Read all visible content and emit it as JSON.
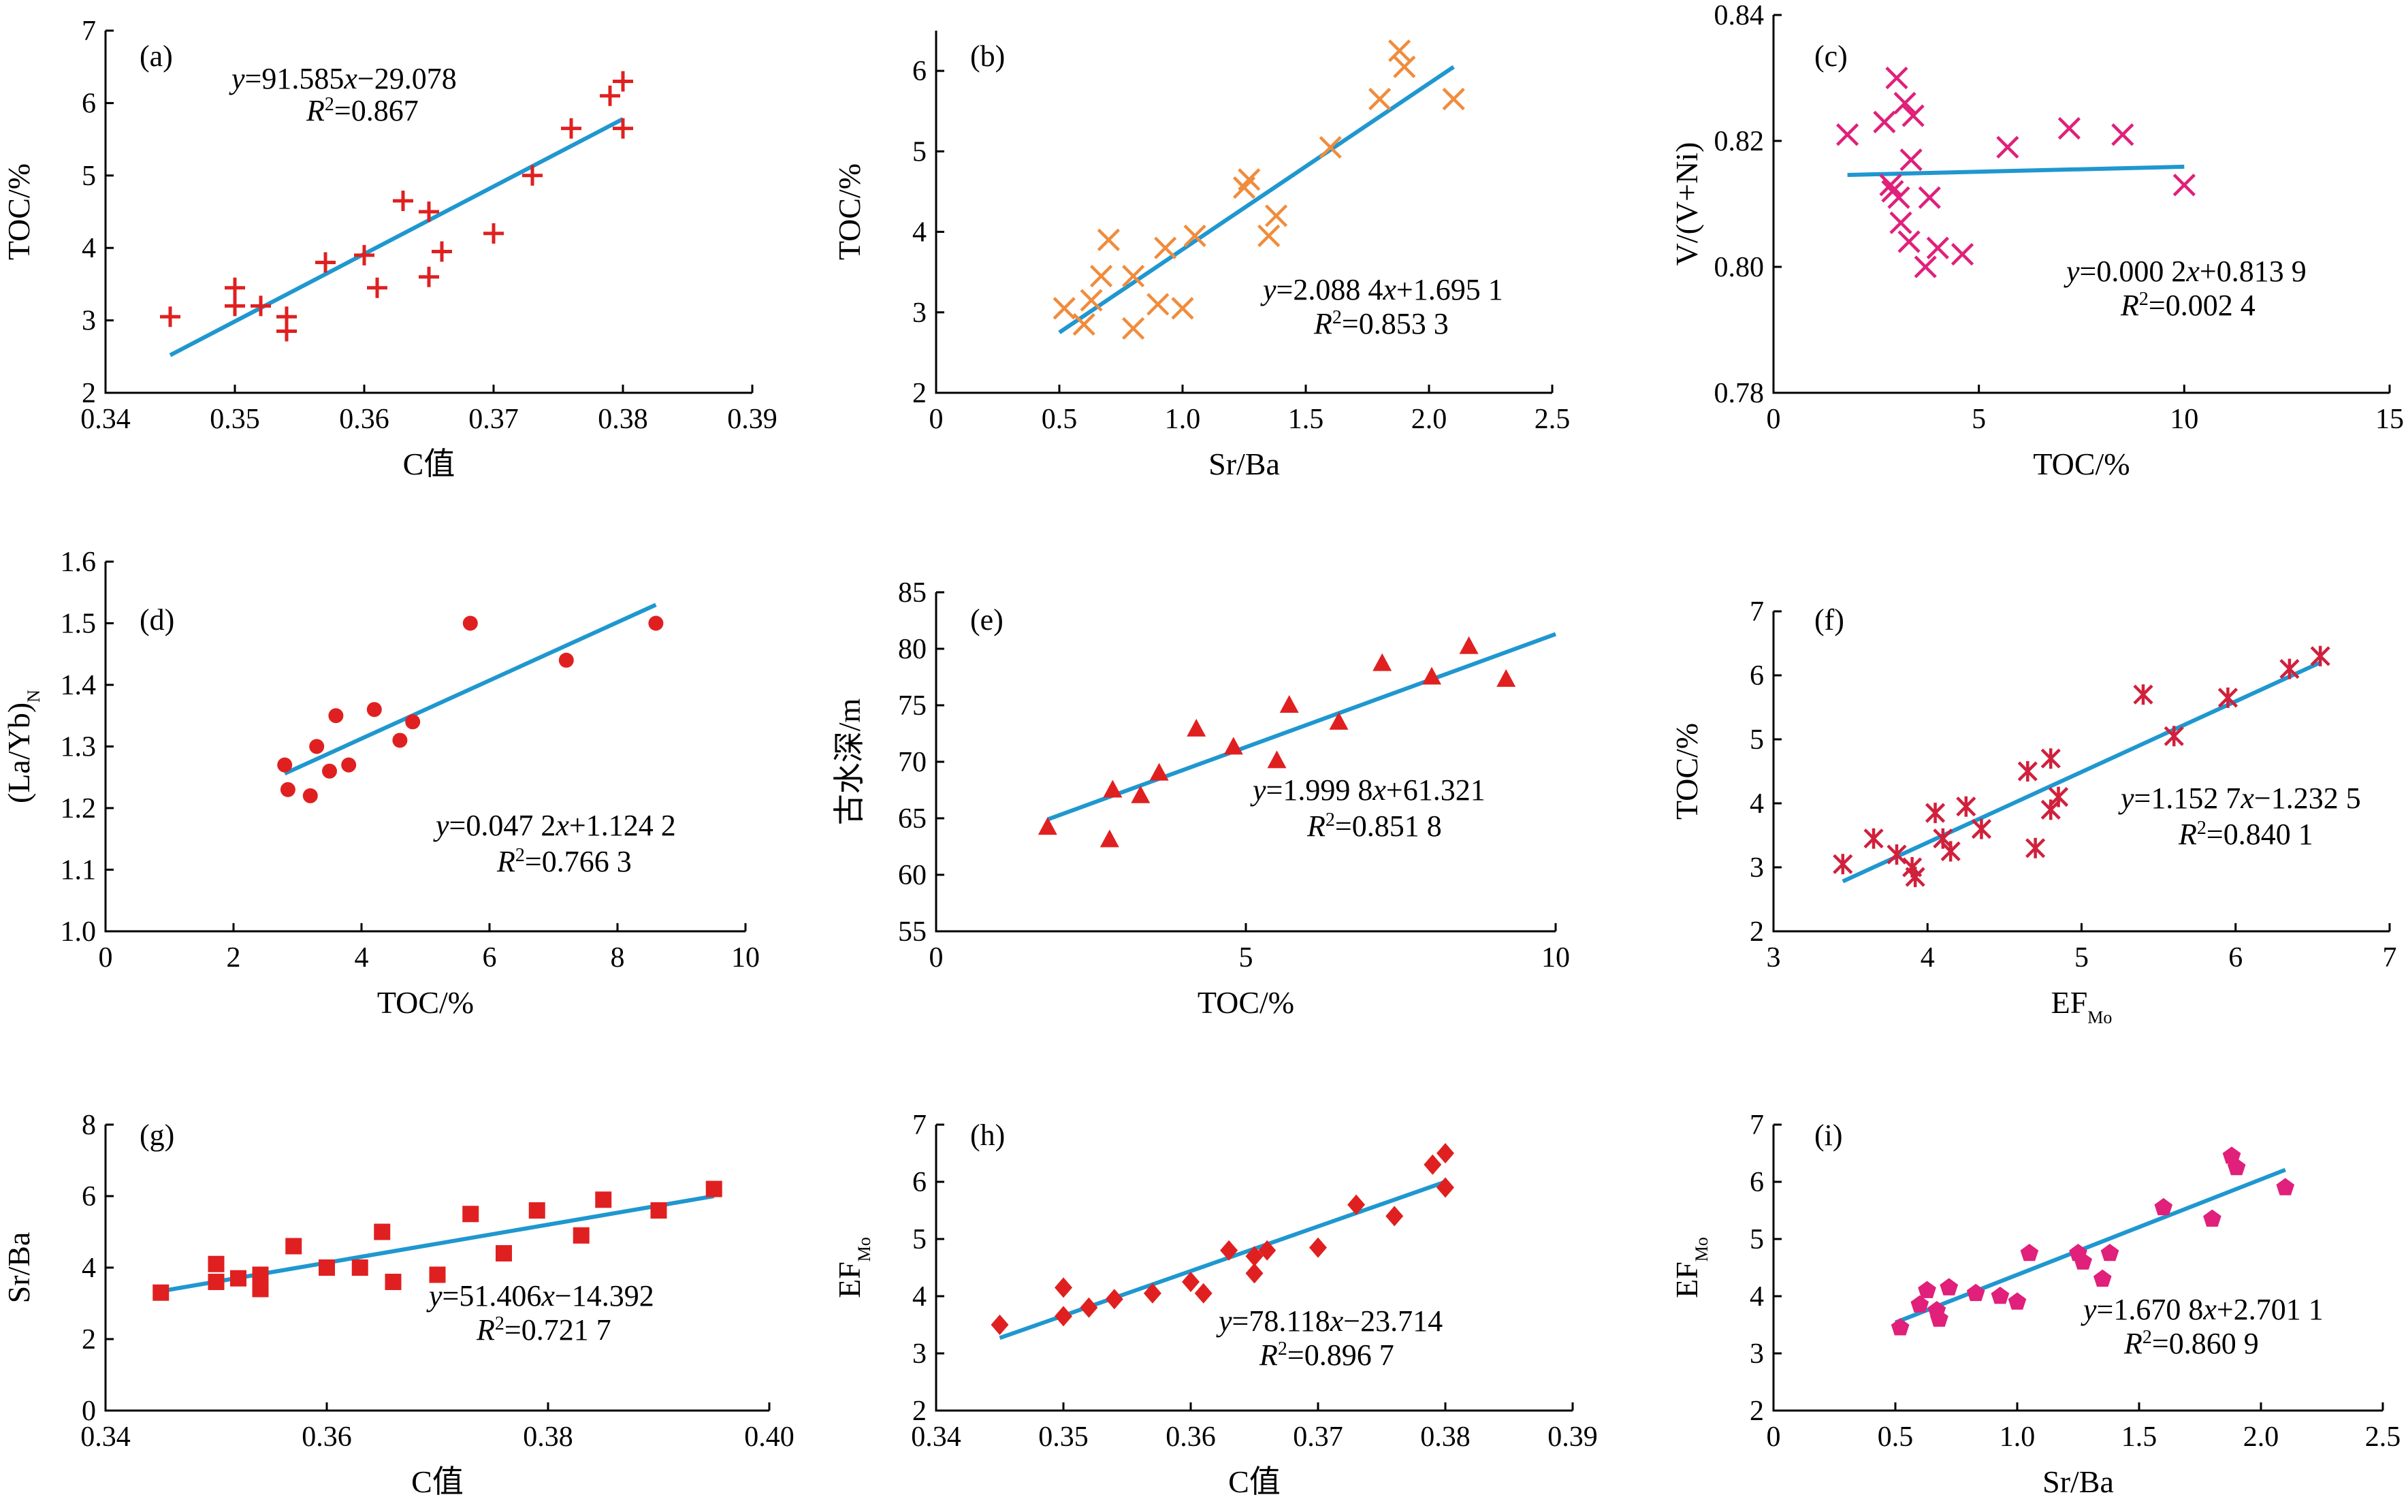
{
  "chart_data": [
    {
      "id": "a",
      "type": "scatter",
      "panel_label": "(a)",
      "xlabel": "C值",
      "ylabel": "TOC/%",
      "xlim": [
        0.34,
        0.39
      ],
      "ylim": [
        2,
        7
      ],
      "xticks": [
        "0.34",
        "0.35",
        "0.36",
        "0.37",
        "0.38",
        "0.39"
      ],
      "yticks": [
        "2",
        "3",
        "4",
        "5",
        "6",
        "7"
      ],
      "marker": "plus",
      "color": "#e02020",
      "eq_line1": "y=91.585x−29.078",
      "eq_line2": "R2=0.867",
      "fit": {
        "x1": 0.345,
        "y1": 2.52,
        "x2": 0.38,
        "y2": 5.78
      },
      "points": [
        [
          0.345,
          3.05
        ],
        [
          0.35,
          3.45
        ],
        [
          0.35,
          3.2
        ],
        [
          0.352,
          3.2
        ],
        [
          0.354,
          3.05
        ],
        [
          0.354,
          2.85
        ],
        [
          0.357,
          3.8
        ],
        [
          0.36,
          3.9
        ],
        [
          0.361,
          3.45
        ],
        [
          0.363,
          4.65
        ],
        [
          0.365,
          4.5
        ],
        [
          0.365,
          3.6
        ],
        [
          0.366,
          3.95
        ],
        [
          0.37,
          4.2
        ],
        [
          0.373,
          5.0
        ],
        [
          0.376,
          5.65
        ],
        [
          0.379,
          6.1
        ],
        [
          0.38,
          6.3
        ],
        [
          0.38,
          5.65
        ]
      ]
    },
    {
      "id": "b",
      "type": "scatter",
      "panel_label": "(b)",
      "xlabel": "Sr/Ba",
      "ylabel": "TOC/%",
      "xlim": [
        0,
        2.5
      ],
      "ylim": [
        2,
        6.5
      ],
      "xticks": [
        "0",
        "0.5",
        "1.0",
        "1.5",
        "2.0",
        "2.5"
      ],
      "yticks": [
        "2",
        "3",
        "4",
        "5",
        "6"
      ],
      "marker": "x",
      "color": "#f08c3c",
      "eq_line1": "y=2.088 4x+1.695 1",
      "eq_line2": "R2=0.853 3",
      "fit": {
        "x1": 0.5,
        "y1": 2.75,
        "x2": 2.1,
        "y2": 6.05
      },
      "points": [
        [
          0.52,
          3.05
        ],
        [
          0.6,
          2.85
        ],
        [
          0.63,
          3.15
        ],
        [
          0.67,
          3.45
        ],
        [
          0.7,
          3.9
        ],
        [
          0.8,
          2.8
        ],
        [
          0.8,
          3.45
        ],
        [
          0.9,
          3.1
        ],
        [
          0.93,
          3.8
        ],
        [
          1.0,
          3.05
        ],
        [
          1.05,
          3.95
        ],
        [
          1.25,
          4.55
        ],
        [
          1.27,
          4.65
        ],
        [
          1.35,
          3.95
        ],
        [
          1.38,
          4.2
        ],
        [
          1.6,
          5.05
        ],
        [
          1.8,
          5.65
        ],
        [
          1.88,
          6.25
        ],
        [
          1.9,
          6.05
        ],
        [
          2.1,
          5.65
        ]
      ]
    },
    {
      "id": "c",
      "type": "scatter",
      "panel_label": "(c)",
      "xlabel": "TOC/%",
      "ylabel": "V/(V+Ni)",
      "xlim": [
        0,
        15
      ],
      "ylim": [
        0.78,
        0.84
      ],
      "xticks": [
        "0",
        "5",
        "10",
        "15"
      ],
      "yticks": [
        "0.78",
        "0.80",
        "0.82",
        "0.84"
      ],
      "marker": "x",
      "color": "#e0207a",
      "eq_line1": "y=0.000 2x+0.813 9",
      "eq_line2": "R2=0.002 4",
      "fit": {
        "x1": 1.8,
        "y1": 0.8146,
        "x2": 10.0,
        "y2": 0.8159
      },
      "points": [
        [
          1.8,
          0.821
        ],
        [
          2.7,
          0.823
        ],
        [
          2.85,
          0.813
        ],
        [
          2.9,
          0.812
        ],
        [
          3.0,
          0.83
        ],
        [
          3.05,
          0.811
        ],
        [
          3.1,
          0.807
        ],
        [
          3.2,
          0.826
        ],
        [
          3.3,
          0.804
        ],
        [
          3.35,
          0.817
        ],
        [
          3.4,
          0.824
        ],
        [
          3.7,
          0.8
        ],
        [
          3.8,
          0.811
        ],
        [
          4.0,
          0.803
        ],
        [
          4.6,
          0.802
        ],
        [
          5.7,
          0.819
        ],
        [
          7.2,
          0.822
        ],
        [
          8.5,
          0.821
        ],
        [
          10.0,
          0.813
        ]
      ]
    },
    {
      "id": "d",
      "type": "scatter",
      "panel_label": "(d)",
      "xlabel": "TOC/%",
      "ylabel": "(La/Yb)N",
      "xlim": [
        0,
        10
      ],
      "ylim": [
        1.0,
        1.6
      ],
      "xticks": [
        "0",
        "2",
        "4",
        "6",
        "8",
        "10"
      ],
      "yticks": [
        "1.0",
        "1.1",
        "1.2",
        "1.3",
        "1.4",
        "1.5",
        "1.6"
      ],
      "marker": "circle",
      "color": "#e02020",
      "eq_line1": "y=0.047 2x+1.124 2",
      "eq_line2": "R2=0.766 3",
      "fit": {
        "x1": 2.8,
        "y1": 1.256,
        "x2": 8.6,
        "y2": 1.53
      },
      "points": [
        [
          2.8,
          1.27
        ],
        [
          2.85,
          1.23
        ],
        [
          3.2,
          1.22
        ],
        [
          3.3,
          1.3
        ],
        [
          3.5,
          1.26
        ],
        [
          3.6,
          1.35
        ],
        [
          3.8,
          1.27
        ],
        [
          4.2,
          1.36
        ],
        [
          4.6,
          1.31
        ],
        [
          4.8,
          1.34
        ],
        [
          5.7,
          1.5
        ],
        [
          7.2,
          1.44
        ],
        [
          8.6,
          1.5
        ]
      ]
    },
    {
      "id": "e",
      "type": "scatter",
      "panel_label": "(e)",
      "xlabel": "TOC/%",
      "ylabel": "古水深/m",
      "xlim": [
        0,
        10
      ],
      "ylim": [
        55,
        85
      ],
      "xticks": [
        "0",
        "5",
        "10"
      ],
      "yticks": [
        "55",
        "60",
        "65",
        "70",
        "75",
        "80",
        "85"
      ],
      "marker": "triangle",
      "color": "#e02020",
      "eq_line1": "y=1.999 8x+61.321",
      "eq_line2": "R2=0.851 8",
      "fit": {
        "x1": 1.8,
        "y1": 64.9,
        "x2": 10.0,
        "y2": 81.3
      },
      "points": [
        [
          1.8,
          64.2
        ],
        [
          2.8,
          63.1
        ],
        [
          2.85,
          67.5
        ],
        [
          3.3,
          67.0
        ],
        [
          3.6,
          69.0
        ],
        [
          4.2,
          72.9
        ],
        [
          4.8,
          71.3
        ],
        [
          5.5,
          70.1
        ],
        [
          5.7,
          75.0
        ],
        [
          6.5,
          73.5
        ],
        [
          7.2,
          78.7
        ],
        [
          8.0,
          77.5
        ],
        [
          8.6,
          80.2
        ],
        [
          9.2,
          77.3
        ]
      ]
    },
    {
      "id": "f",
      "type": "scatter",
      "panel_label": "(f)",
      "xlabel": "EFMo",
      "ylabel": "TOC/%",
      "xlim": [
        3,
        7
      ],
      "ylim": [
        2,
        7
      ],
      "xticks": [
        "3",
        "4",
        "5",
        "6",
        "7"
      ],
      "yticks": [
        "2",
        "3",
        "4",
        "5",
        "6",
        "7"
      ],
      "marker": "star",
      "color": "#d0203c",
      "eq_line1": "y=1.152 7x−1.232 5",
      "eq_line2": "R2=0.840 1",
      "fit": {
        "x1": 3.45,
        "y1": 2.78,
        "x2": 6.55,
        "y2": 6.2
      },
      "points": [
        [
          3.45,
          3.05
        ],
        [
          3.65,
          3.45
        ],
        [
          3.8,
          3.2
        ],
        [
          3.9,
          3.0
        ],
        [
          3.92,
          2.85
        ],
        [
          4.05,
          3.85
        ],
        [
          4.1,
          3.45
        ],
        [
          4.15,
          3.25
        ],
        [
          4.25,
          3.95
        ],
        [
          4.35,
          3.6
        ],
        [
          4.65,
          4.5
        ],
        [
          4.7,
          3.3
        ],
        [
          4.8,
          3.9
        ],
        [
          4.8,
          4.7
        ],
        [
          4.85,
          4.1
        ],
        [
          5.4,
          5.7
        ],
        [
          5.6,
          5.05
        ],
        [
          5.95,
          5.65
        ],
        [
          6.35,
          6.1
        ],
        [
          6.55,
          6.3
        ]
      ]
    },
    {
      "id": "g",
      "type": "scatter",
      "panel_label": "(g)",
      "xlabel": "C值",
      "ylabel": "Sr/Ba",
      "xlim": [
        0.34,
        0.4
      ],
      "ylim": [
        0,
        8
      ],
      "xticks": [
        "0.34",
        "0.36",
        "0.38",
        "0.40"
      ],
      "yticks": [
        "0",
        "2",
        "4",
        "6",
        "8"
      ],
      "marker": "square",
      "color": "#e02020",
      "eq_line1": "y=51.406x−14.392",
      "eq_line2": "R2=0.721 7",
      "fit": {
        "x1": 0.345,
        "y1": 3.34,
        "x2": 0.395,
        "y2": 6.0
      },
      "points": [
        [
          0.345,
          3.3
        ],
        [
          0.35,
          4.1
        ],
        [
          0.35,
          3.6
        ],
        [
          0.352,
          3.7
        ],
        [
          0.354,
          3.8
        ],
        [
          0.354,
          3.4
        ],
        [
          0.357,
          4.6
        ],
        [
          0.36,
          4.0
        ],
        [
          0.363,
          4.0
        ],
        [
          0.365,
          5.0
        ],
        [
          0.366,
          3.6
        ],
        [
          0.37,
          3.8
        ],
        [
          0.373,
          5.5
        ],
        [
          0.376,
          4.4
        ],
        [
          0.379,
          5.6
        ],
        [
          0.383,
          4.9
        ],
        [
          0.385,
          5.9
        ],
        [
          0.39,
          5.6
        ],
        [
          0.395,
          6.2
        ]
      ]
    },
    {
      "id": "h",
      "type": "scatter",
      "panel_label": "(h)",
      "xlabel": "C值",
      "ylabel": "EFMo",
      "xlim": [
        0.34,
        0.39
      ],
      "ylim": [
        2,
        7
      ],
      "xticks": [
        "0.34",
        "0.35",
        "0.36",
        "0.37",
        "0.38",
        "0.39"
      ],
      "yticks": [
        "2",
        "3",
        "4",
        "5",
        "6",
        "7"
      ],
      "marker": "diamond",
      "color": "#e02020",
      "eq_line1": "y=78.118x−23.714",
      "eq_line2": "R2=0.896 7",
      "fit": {
        "x1": 0.345,
        "y1": 3.27,
        "x2": 0.38,
        "y2": 6.0
      },
      "points": [
        [
          0.345,
          3.5
        ],
        [
          0.35,
          4.15
        ],
        [
          0.35,
          3.65
        ],
        [
          0.352,
          3.8
        ],
        [
          0.354,
          3.95
        ],
        [
          0.357,
          4.05
        ],
        [
          0.36,
          4.25
        ],
        [
          0.361,
          4.05
        ],
        [
          0.363,
          4.8
        ],
        [
          0.365,
          4.4
        ],
        [
          0.365,
          4.7
        ],
        [
          0.366,
          4.8
        ],
        [
          0.37,
          4.85
        ],
        [
          0.373,
          5.6
        ],
        [
          0.376,
          5.4
        ],
        [
          0.379,
          6.3
        ],
        [
          0.38,
          6.5
        ],
        [
          0.38,
          5.9
        ]
      ]
    },
    {
      "id": "i",
      "type": "scatter",
      "panel_label": "(i)",
      "xlabel": "Sr/Ba",
      "ylabel": "EFMo",
      "xlim": [
        0,
        2.5
      ],
      "ylim": [
        2,
        7
      ],
      "xticks": [
        "0",
        "0.5",
        "1.0",
        "1.5",
        "2.0",
        "2.5"
      ],
      "yticks": [
        "2",
        "3",
        "4",
        "5",
        "6",
        "7"
      ],
      "marker": "pentagon",
      "color": "#e0207a",
      "eq_line1": "y=1.670 8x+2.701 1",
      "eq_line2": "R2=0.860 9",
      "fit": {
        "x1": 0.5,
        "y1": 3.54,
        "x2": 2.1,
        "y2": 6.21
      },
      "points": [
        [
          0.52,
          3.45
        ],
        [
          0.6,
          3.85
        ],
        [
          0.63,
          4.1
        ],
        [
          0.67,
          3.75
        ],
        [
          0.68,
          3.6
        ],
        [
          0.72,
          4.15
        ],
        [
          0.83,
          4.05
        ],
        [
          0.93,
          4.0
        ],
        [
          1.0,
          3.9
        ],
        [
          1.05,
          4.75
        ],
        [
          1.25,
          4.75
        ],
        [
          1.27,
          4.6
        ],
        [
          1.35,
          4.3
        ],
        [
          1.38,
          4.75
        ],
        [
          1.6,
          5.55
        ],
        [
          1.8,
          5.35
        ],
        [
          1.88,
          6.45
        ],
        [
          1.9,
          6.25
        ],
        [
          2.1,
          5.9
        ]
      ]
    }
  ]
}
